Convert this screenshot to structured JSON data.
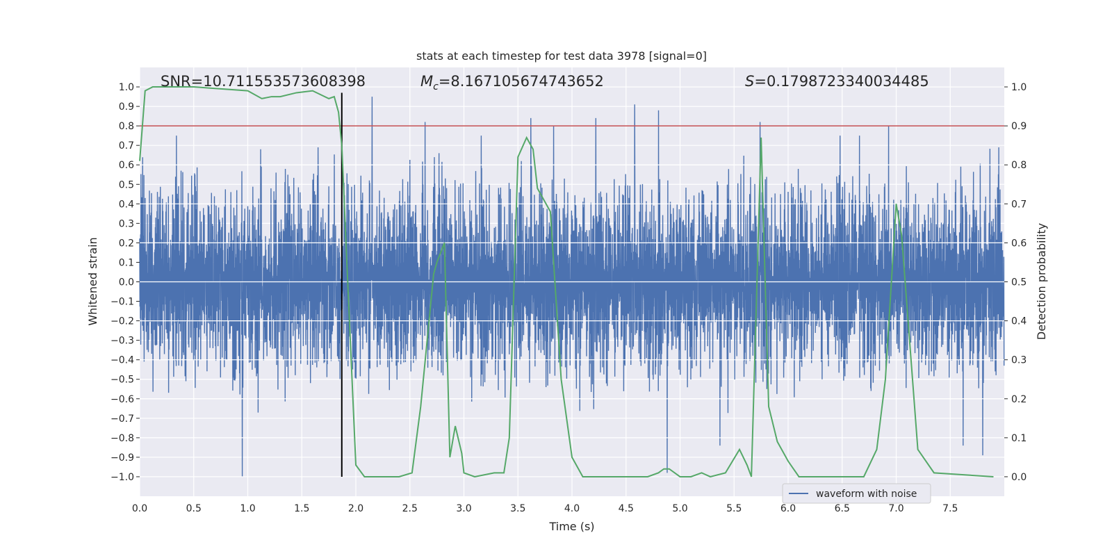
{
  "chart_data": {
    "type": "line",
    "title": "stats at each timestep for test data 3978 [signal=0]",
    "xlabel": "Time (s)",
    "ylabel": "Whitened strain",
    "y2label": "Detection probability",
    "xlim": [
      0.0,
      8.0
    ],
    "ylim": [
      -1.1,
      1.1
    ],
    "y2lim": [
      -0.05,
      1.05
    ],
    "xticks": [
      0.0,
      0.5,
      1.0,
      1.5,
      2.0,
      2.5,
      3.0,
      3.5,
      4.0,
      4.5,
      5.0,
      5.5,
      6.0,
      6.5,
      7.0,
      7.5
    ],
    "xtick_labels": [
      "0.0",
      "0.5",
      "1.0",
      "1.5",
      "2.0",
      "2.5",
      "3.0",
      "3.5",
      "4.0",
      "4.5",
      "5.0",
      "5.5",
      "6.0",
      "6.5",
      "7.0",
      "7.5"
    ],
    "yticks": [
      1.0,
      0.9,
      0.8,
      0.7,
      0.6,
      0.5,
      0.4,
      0.3,
      0.2,
      0.1,
      0.0,
      -0.1,
      -0.2,
      -0.3,
      -0.4,
      -0.5,
      -0.6,
      -0.7,
      -0.8,
      -0.9,
      -1.0
    ],
    "ytick_labels": [
      "1.0",
      "0.9",
      "0.8",
      "0.7",
      "0.6",
      "0.5",
      "0.4",
      "0.3",
      "0.2",
      "0.1",
      "0.0",
      "−0.1",
      "−0.2",
      "−0.3",
      "−0.4",
      "−0.5",
      "−0.6",
      "−0.7",
      "−0.8",
      "−0.9",
      "−1.0"
    ],
    "y2ticks": [
      1.0,
      0.9,
      0.8,
      0.7,
      0.6,
      0.5,
      0.4,
      0.3,
      0.2,
      0.1,
      0.0
    ],
    "y2tick_labels": [
      "1.0",
      "0.9",
      "0.8",
      "0.7",
      "0.6",
      "0.5",
      "0.4",
      "0.3",
      "0.2",
      "0.1",
      "0.0"
    ],
    "annotations": {
      "snr": "SNR=10.711553573608398",
      "mc_symbol": "M",
      "mc_sub": "c",
      "mc_value": "=8.167105674743652",
      "s_symbol": "S",
      "s_value": "=0.1798723340034485"
    },
    "legend": {
      "label": "waveform with noise",
      "location": "lower-center-right"
    },
    "threshold": {
      "value": 0.9,
      "axis": "y2"
    },
    "marker_time": 1.87,
    "waveform": {
      "name": "waveform with noise",
      "sample_rate": 512,
      "duration": 8.0,
      "amplitude_envelope": [
        0.4,
        0.44
      ],
      "spikes": [
        [
          0.34,
          0.75
        ],
        [
          0.95,
          -1.0
        ],
        [
          1.12,
          0.68
        ],
        [
          1.65,
          0.69
        ],
        [
          2.15,
          0.95
        ],
        [
          2.64,
          0.82
        ],
        [
          2.77,
          0.66
        ],
        [
          3.16,
          0.75
        ],
        [
          3.62,
          0.84
        ],
        [
          3.83,
          0.8
        ],
        [
          4.22,
          0.84
        ],
        [
          4.58,
          0.91
        ],
        [
          4.8,
          0.88
        ],
        [
          4.88,
          -0.98
        ],
        [
          5.37,
          -0.84
        ],
        [
          5.74,
          0.82
        ],
        [
          6.48,
          0.75
        ],
        [
          6.66,
          0.75
        ],
        [
          6.93,
          0.8
        ],
        [
          7.95,
          0.69
        ],
        [
          7.8,
          -0.89
        ],
        [
          7.62,
          -0.84
        ]
      ]
    },
    "detection_probability": {
      "name": "detection probability",
      "x": [
        0.0,
        0.05,
        0.12,
        0.5,
        1.0,
        1.13,
        1.22,
        1.3,
        1.45,
        1.6,
        1.75,
        1.8,
        1.84,
        1.87,
        1.92,
        2.0,
        2.08,
        2.2,
        2.4,
        2.52,
        2.6,
        2.72,
        2.75,
        2.82,
        2.87,
        2.92,
        2.98,
        3.0,
        3.1,
        3.28,
        3.37,
        3.42,
        3.5,
        3.58,
        3.64,
        3.68,
        3.72,
        3.8,
        3.9,
        4.0,
        4.1,
        4.5,
        4.7,
        4.8,
        4.85,
        4.9,
        5.0,
        5.1,
        5.2,
        5.28,
        5.42,
        5.55,
        5.62,
        5.66,
        5.75,
        5.82,
        5.9,
        6.0,
        6.1,
        6.5,
        6.7,
        6.82,
        6.9,
        7.0,
        7.05,
        7.2,
        7.35,
        7.9
      ],
      "y": [
        0.81,
        0.99,
        1.0,
        1.0,
        0.99,
        0.97,
        0.975,
        0.975,
        0.985,
        0.99,
        0.97,
        0.975,
        0.935,
        0.85,
        0.53,
        0.03,
        0.0,
        0.0,
        0.0,
        0.01,
        0.18,
        0.52,
        0.55,
        0.6,
        0.05,
        0.13,
        0.06,
        0.01,
        0.0,
        0.01,
        0.01,
        0.1,
        0.82,
        0.87,
        0.84,
        0.74,
        0.72,
        0.68,
        0.25,
        0.05,
        0.0,
        0.0,
        0.0,
        0.01,
        0.02,
        0.02,
        0.0,
        0.0,
        0.01,
        0.0,
        0.01,
        0.07,
        0.03,
        0.0,
        0.87,
        0.18,
        0.09,
        0.04,
        0.0,
        0.0,
        0.0,
        0.07,
        0.25,
        0.7,
        0.62,
        0.07,
        0.01,
        0.0
      ]
    },
    "colors": {
      "plot_background": "#eaeaf2",
      "grid": "#ffffff",
      "waveform": "#4c72b0",
      "probability": "#55a868",
      "threshold": "#c44e52",
      "marker": "#000000",
      "text": "#262626",
      "legend_bg": "#eaeaf2",
      "legend_border": "#cccccc"
    }
  }
}
